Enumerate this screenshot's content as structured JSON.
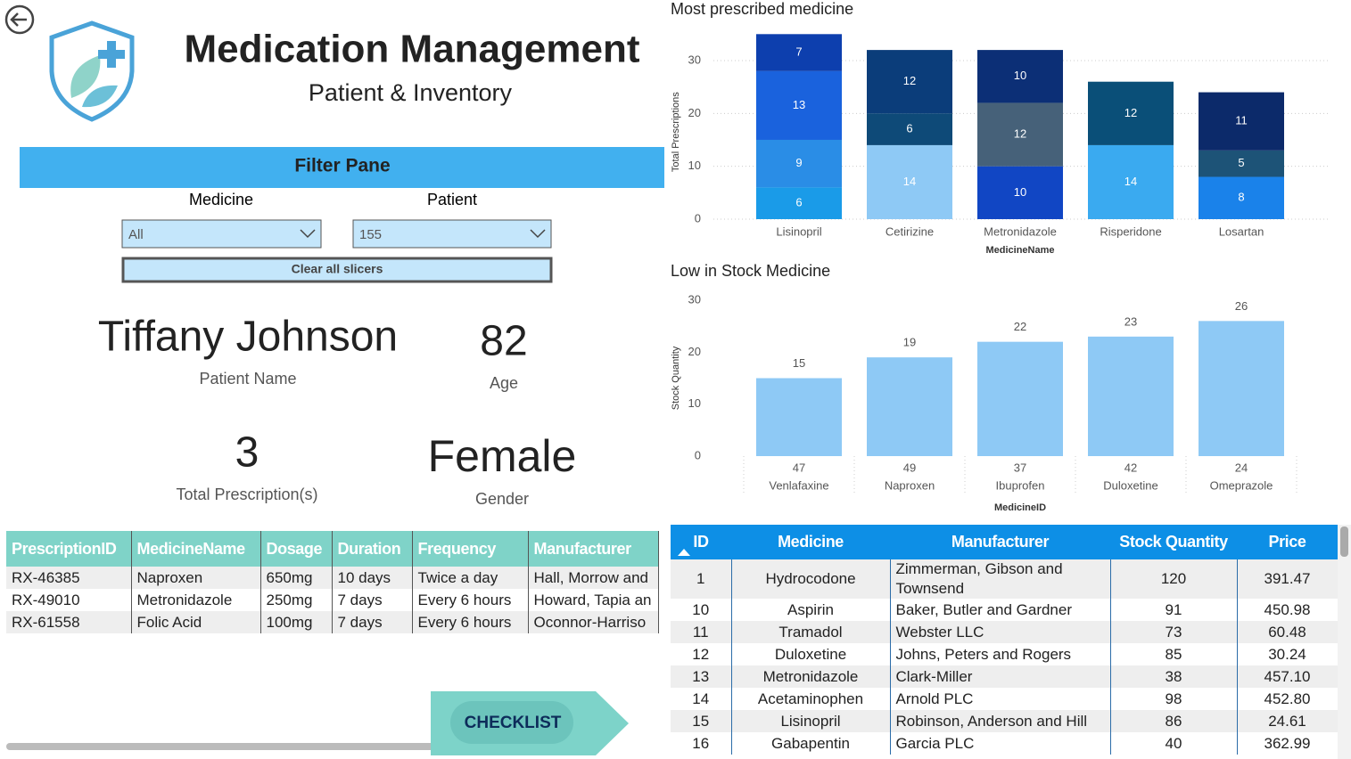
{
  "header": {
    "title": "Medication Management",
    "subtitle": "Patient & Inventory"
  },
  "filter_pane": {
    "title": "Filter Pane",
    "medicine_label": "Medicine",
    "medicine_value": "All",
    "patient_label": "Patient",
    "patient_value": "155",
    "clear_button": "Clear all slicers"
  },
  "patient": {
    "name": "Tiffany Johnson",
    "name_label": "Patient Name",
    "age": "82",
    "age_label": "Age",
    "total_prescriptions": "3",
    "total_prescriptions_label": "Total Prescription(s)",
    "gender": "Female",
    "gender_label": "Gender"
  },
  "prescriptions_table": {
    "columns": [
      "PrescriptionID",
      "MedicineName",
      "Dosage",
      "Duration",
      "Frequency",
      "Manufacturer"
    ],
    "rows": [
      [
        "RX-46385",
        "Naproxen",
        "650mg",
        "10 days",
        "Twice a day",
        "Hall, Morrow and"
      ],
      [
        "RX-49010",
        "Metronidazole",
        "250mg",
        "7 days",
        "Every 6 hours",
        "Howard, Tapia an"
      ],
      [
        "RX-61558",
        "Folic Acid",
        "100mg",
        "7 days",
        "Every 6 hours",
        "Oconnor-Harriso"
      ]
    ]
  },
  "checklist_button": "CHECKLIST",
  "chart_data": [
    {
      "type": "stacked_bar",
      "title": "Most prescribed medicine",
      "x_label": "MedicineName",
      "y_label": "Total Prescriptions",
      "categories": [
        "Lisinopril",
        "Cetirizine",
        "Metronidazole",
        "Risperidone",
        "Losartan"
      ],
      "stacks": [
        [
          6,
          9,
          13,
          7
        ],
        [
          14,
          6,
          12
        ],
        [
          10,
          12,
          10
        ],
        [
          14,
          12
        ],
        [
          8,
          5,
          11
        ]
      ],
      "stack_colors": [
        [
          "#1a9be8",
          "#2a8de6",
          "#1a62dd",
          "#0d3fae"
        ],
        [
          "#8ec9f5",
          "#0e4a78",
          "#0b3d7a"
        ],
        [
          "#1146c4",
          "#466179",
          "#0c2f76"
        ],
        [
          "#3aaaf0",
          "#0a4f78"
        ],
        [
          "#1a82ea",
          "#1d5377",
          "#0c2a6a"
        ]
      ],
      "ylim": [
        0,
        35
      ],
      "yticks": [
        0,
        10,
        20,
        30
      ],
      "grid": true
    },
    {
      "type": "bar",
      "title": "Low in Stock Medicine",
      "x_label": "MedicineID",
      "y_label": "Stock Quantity",
      "categories": [
        "47",
        "49",
        "37",
        "42",
        "24"
      ],
      "category_names": [
        "Venlafaxine",
        "Naproxen",
        "Ibuprofen",
        "Duloxetine",
        "Omeprazole"
      ],
      "values": [
        15,
        19,
        22,
        23,
        26
      ],
      "color": "#8ec9f5",
      "ylim": [
        0,
        30
      ],
      "yticks": [
        0,
        10,
        20,
        30
      ],
      "grid": false
    }
  ],
  "inventory_table": {
    "columns": [
      "ID",
      "Medicine",
      "Manufacturer",
      "Stock Quantity",
      "Price"
    ],
    "rows": [
      [
        "1",
        "Hydrocodone",
        "Zimmerman, Gibson and Townsend",
        "120",
        "391.47"
      ],
      [
        "10",
        "Aspirin",
        "Baker, Butler and Gardner",
        "91",
        "450.98"
      ],
      [
        "11",
        "Tramadol",
        "Webster LLC",
        "73",
        "60.48"
      ],
      [
        "12",
        "Duloxetine",
        "Johns, Peters and Rogers",
        "85",
        "30.24"
      ],
      [
        "13",
        "Metronidazole",
        "Clark-Miller",
        "38",
        "457.10"
      ],
      [
        "14",
        "Acetaminophen",
        "Arnold PLC",
        "98",
        "452.80"
      ],
      [
        "15",
        "Lisinopril",
        "Robinson, Anderson and Hill",
        "86",
        "24.61"
      ],
      [
        "16",
        "Gabapentin",
        "Garcia PLC",
        "40",
        "362.99"
      ]
    ]
  }
}
